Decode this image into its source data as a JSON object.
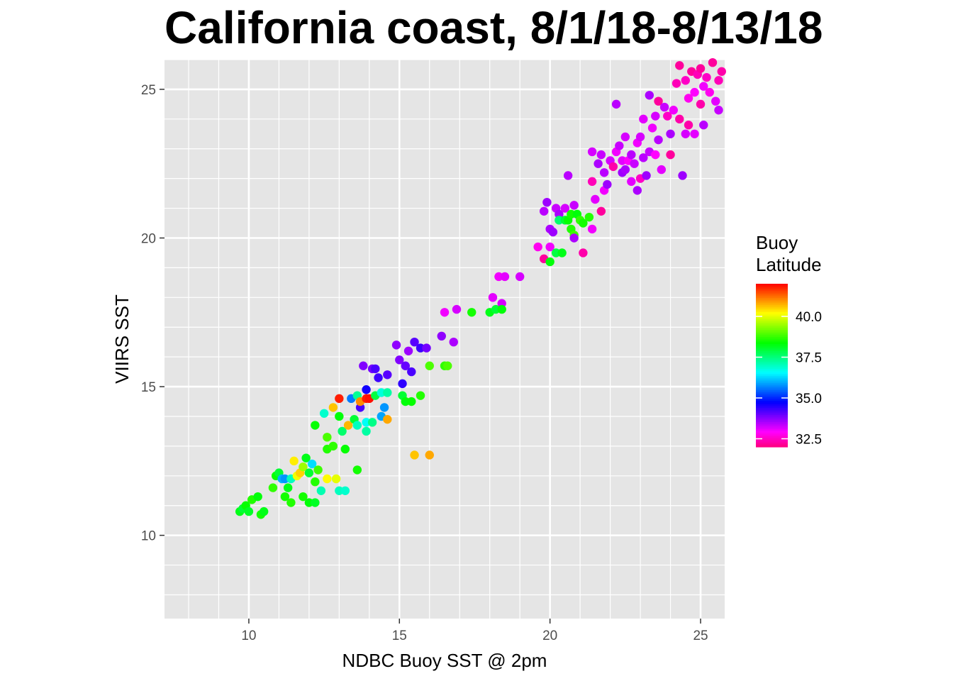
{
  "chart_data": {
    "type": "scatter",
    "title": "California coast, 8/1/18-8/13/18",
    "xlabel": "NDBC Buoy SST @ 2pm",
    "ylabel": "VIIRS SST",
    "xlim": [
      7.2,
      25.8
    ],
    "ylim": [
      7.2,
      26.0
    ],
    "x_ticks": [
      10,
      15,
      20,
      25
    ],
    "y_ticks": [
      10,
      15,
      20,
      25
    ],
    "grid": true,
    "panel_background": "#e5e5e5",
    "legend": {
      "title_lines": [
        "Buoy",
        "Latitude"
      ],
      "placement": "right",
      "range": [
        32.0,
        42.0
      ],
      "ticks": [
        32.5,
        35.0,
        37.5,
        40.0
      ],
      "tick_labels": [
        "32.5",
        "35.0",
        "37.5",
        "40.0"
      ],
      "colorscale": "rainbow: magenta (low) to red (high)"
    },
    "points": [
      {
        "x": 9.7,
        "y": 10.8,
        "lat": 38.2
      },
      {
        "x": 9.8,
        "y": 10.9,
        "lat": 38.0
      },
      {
        "x": 9.9,
        "y": 11.0,
        "lat": 38.4
      },
      {
        "x": 10.0,
        "y": 10.8,
        "lat": 38.1
      },
      {
        "x": 10.1,
        "y": 11.2,
        "lat": 38.6
      },
      {
        "x": 10.3,
        "y": 11.3,
        "lat": 38.3
      },
      {
        "x": 10.4,
        "y": 10.7,
        "lat": 38.5
      },
      {
        "x": 10.5,
        "y": 10.8,
        "lat": 38.2
      },
      {
        "x": 10.8,
        "y": 11.6,
        "lat": 38.7
      },
      {
        "x": 10.9,
        "y": 12.0,
        "lat": 38.4
      },
      {
        "x": 11.0,
        "y": 12.1,
        "lat": 38.0
      },
      {
        "x": 11.1,
        "y": 11.9,
        "lat": 36.0
      },
      {
        "x": 11.2,
        "y": 11.9,
        "lat": 35.8
      },
      {
        "x": 11.2,
        "y": 11.3,
        "lat": 38.5
      },
      {
        "x": 11.3,
        "y": 11.6,
        "lat": 38.2
      },
      {
        "x": 11.4,
        "y": 11.9,
        "lat": 37.0
      },
      {
        "x": 11.4,
        "y": 11.1,
        "lat": 38.6
      },
      {
        "x": 11.5,
        "y": 12.5,
        "lat": 40.3
      },
      {
        "x": 11.6,
        "y": 12.0,
        "lat": 40.1
      },
      {
        "x": 11.7,
        "y": 12.1,
        "lat": 40.5
      },
      {
        "x": 11.8,
        "y": 12.3,
        "lat": 39.5
      },
      {
        "x": 11.8,
        "y": 11.3,
        "lat": 38.5
      },
      {
        "x": 11.9,
        "y": 12.6,
        "lat": 38.2
      },
      {
        "x": 12.0,
        "y": 12.1,
        "lat": 38.0
      },
      {
        "x": 12.1,
        "y": 12.4,
        "lat": 36.3
      },
      {
        "x": 12.2,
        "y": 11.8,
        "lat": 38.6
      },
      {
        "x": 12.0,
        "y": 11.1,
        "lat": 38.3
      },
      {
        "x": 12.2,
        "y": 11.1,
        "lat": 38.1
      },
      {
        "x": 12.3,
        "y": 12.2,
        "lat": 38.8
      },
      {
        "x": 12.2,
        "y": 13.7,
        "lat": 38.4
      },
      {
        "x": 12.4,
        "y": 11.5,
        "lat": 37.1
      },
      {
        "x": 12.5,
        "y": 14.1,
        "lat": 36.9
      },
      {
        "x": 12.6,
        "y": 13.3,
        "lat": 38.9
      },
      {
        "x": 12.6,
        "y": 12.9,
        "lat": 38.6
      },
      {
        "x": 12.6,
        "y": 11.9,
        "lat": 40.2
      },
      {
        "x": 12.8,
        "y": 14.3,
        "lat": 40.6
      },
      {
        "x": 12.8,
        "y": 13.0,
        "lat": 38.7
      },
      {
        "x": 12.9,
        "y": 11.9,
        "lat": 40.0
      },
      {
        "x": 13.0,
        "y": 14.6,
        "lat": 41.8
      },
      {
        "x": 13.0,
        "y": 14.0,
        "lat": 38.3
      },
      {
        "x": 13.0,
        "y": 11.5,
        "lat": 37.0
      },
      {
        "x": 13.1,
        "y": 13.5,
        "lat": 37.6
      },
      {
        "x": 13.2,
        "y": 12.9,
        "lat": 38.4
      },
      {
        "x": 13.2,
        "y": 11.5,
        "lat": 36.9
      },
      {
        "x": 13.3,
        "y": 13.7,
        "lat": 40.7
      },
      {
        "x": 13.4,
        "y": 14.6,
        "lat": 35.6
      },
      {
        "x": 13.5,
        "y": 13.9,
        "lat": 38.0
      },
      {
        "x": 13.6,
        "y": 14.7,
        "lat": 37.3
      },
      {
        "x": 13.6,
        "y": 13.7,
        "lat": 37.0
      },
      {
        "x": 13.6,
        "y": 12.2,
        "lat": 38.5
      },
      {
        "x": 13.7,
        "y": 14.3,
        "lat": 34.2
      },
      {
        "x": 13.7,
        "y": 14.5,
        "lat": 41.0
      },
      {
        "x": 13.8,
        "y": 15.7,
        "lat": 33.8
      },
      {
        "x": 13.9,
        "y": 14.9,
        "lat": 34.6
      },
      {
        "x": 13.9,
        "y": 14.6,
        "lat": 41.8
      },
      {
        "x": 13.9,
        "y": 13.5,
        "lat": 37.2
      },
      {
        "x": 13.9,
        "y": 13.8,
        "lat": 36.6
      },
      {
        "x": 14.0,
        "y": 14.6,
        "lat": 41.9
      },
      {
        "x": 14.1,
        "y": 15.6,
        "lat": 33.9
      },
      {
        "x": 14.1,
        "y": 13.8,
        "lat": 37.4
      },
      {
        "x": 14.2,
        "y": 14.7,
        "lat": 37.9
      },
      {
        "x": 14.2,
        "y": 15.6,
        "lat": 34.2
      },
      {
        "x": 14.3,
        "y": 15.3,
        "lat": 34.3
      },
      {
        "x": 14.4,
        "y": 14.0,
        "lat": 35.9
      },
      {
        "x": 14.4,
        "y": 14.8,
        "lat": 36.8
      },
      {
        "x": 14.5,
        "y": 14.3,
        "lat": 35.8
      },
      {
        "x": 14.6,
        "y": 13.9,
        "lat": 40.8
      },
      {
        "x": 14.6,
        "y": 14.8,
        "lat": 37.2
      },
      {
        "x": 14.6,
        "y": 15.4,
        "lat": 34.1
      },
      {
        "x": 14.9,
        "y": 16.4,
        "lat": 33.7
      },
      {
        "x": 15.0,
        "y": 15.9,
        "lat": 33.8
      },
      {
        "x": 15.1,
        "y": 14.7,
        "lat": 38.0
      },
      {
        "x": 15.1,
        "y": 15.1,
        "lat": 34.4
      },
      {
        "x": 15.2,
        "y": 14.5,
        "lat": 38.3
      },
      {
        "x": 15.2,
        "y": 15.7,
        "lat": 34.0
      },
      {
        "x": 15.3,
        "y": 16.2,
        "lat": 33.6
      },
      {
        "x": 15.4,
        "y": 14.5,
        "lat": 38.4
      },
      {
        "x": 15.4,
        "y": 15.5,
        "lat": 34.2
      },
      {
        "x": 15.5,
        "y": 16.5,
        "lat": 34.1
      },
      {
        "x": 15.5,
        "y": 12.7,
        "lat": 40.6
      },
      {
        "x": 15.7,
        "y": 14.7,
        "lat": 38.6
      },
      {
        "x": 15.7,
        "y": 16.3,
        "lat": 34.3
      },
      {
        "x": 15.9,
        "y": 16.3,
        "lat": 33.9
      },
      {
        "x": 16.0,
        "y": 15.7,
        "lat": 38.9
      },
      {
        "x": 16.0,
        "y": 12.7,
        "lat": 40.8
      },
      {
        "x": 16.4,
        "y": 16.7,
        "lat": 33.7
      },
      {
        "x": 16.5,
        "y": 15.7,
        "lat": 38.7
      },
      {
        "x": 16.6,
        "y": 15.7,
        "lat": 38.9
      },
      {
        "x": 16.5,
        "y": 17.5,
        "lat": 33.0
      },
      {
        "x": 16.8,
        "y": 16.5,
        "lat": 33.5
      },
      {
        "x": 16.9,
        "y": 17.6,
        "lat": 33.2
      },
      {
        "x": 17.4,
        "y": 17.5,
        "lat": 38.5
      },
      {
        "x": 18.0,
        "y": 17.5,
        "lat": 38.2
      },
      {
        "x": 18.1,
        "y": 18.0,
        "lat": 33.1
      },
      {
        "x": 18.2,
        "y": 17.6,
        "lat": 38.0
      },
      {
        "x": 18.3,
        "y": 18.7,
        "lat": 33.0
      },
      {
        "x": 18.4,
        "y": 17.8,
        "lat": 33.2
      },
      {
        "x": 18.4,
        "y": 17.6,
        "lat": 38.3
      },
      {
        "x": 18.5,
        "y": 18.7,
        "lat": 33.1
      },
      {
        "x": 19.0,
        "y": 18.7,
        "lat": 33.2
      },
      {
        "x": 19.6,
        "y": 19.7,
        "lat": 32.8
      },
      {
        "x": 19.8,
        "y": 19.3,
        "lat": 32.2
      },
      {
        "x": 19.8,
        "y": 20.9,
        "lat": 33.4
      },
      {
        "x": 19.9,
        "y": 21.2,
        "lat": 33.6
      },
      {
        "x": 20.0,
        "y": 19.2,
        "lat": 38.3
      },
      {
        "x": 20.0,
        "y": 20.3,
        "lat": 33.5
      },
      {
        "x": 20.0,
        "y": 19.7,
        "lat": 33.0
      },
      {
        "x": 20.1,
        "y": 20.2,
        "lat": 33.6
      },
      {
        "x": 20.2,
        "y": 21.0,
        "lat": 33.3
      },
      {
        "x": 20.2,
        "y": 19.5,
        "lat": 37.9
      },
      {
        "x": 20.3,
        "y": 20.8,
        "lat": 33.5
      },
      {
        "x": 20.3,
        "y": 20.6,
        "lat": 37.6
      },
      {
        "x": 20.4,
        "y": 19.5,
        "lat": 38.2
      },
      {
        "x": 20.5,
        "y": 21.0,
        "lat": 33.2
      },
      {
        "x": 20.5,
        "y": 20.6,
        "lat": 38.0
      },
      {
        "x": 20.6,
        "y": 22.1,
        "lat": 33.4
      },
      {
        "x": 20.6,
        "y": 20.6,
        "lat": 38.4
      },
      {
        "x": 20.7,
        "y": 20.3,
        "lat": 38.6
      },
      {
        "x": 20.7,
        "y": 20.8,
        "lat": 38.5
      },
      {
        "x": 20.8,
        "y": 21.1,
        "lat": 33.3
      },
      {
        "x": 20.8,
        "y": 20.1,
        "lat": 38.8
      },
      {
        "x": 20.8,
        "y": 20.0,
        "lat": 33.5
      },
      {
        "x": 20.9,
        "y": 20.8,
        "lat": 38.3
      },
      {
        "x": 21.0,
        "y": 20.6,
        "lat": 38.7
      },
      {
        "x": 21.1,
        "y": 19.5,
        "lat": 32.3
      },
      {
        "x": 21.1,
        "y": 20.5,
        "lat": 38.5
      },
      {
        "x": 21.3,
        "y": 20.7,
        "lat": 38.6
      },
      {
        "x": 21.4,
        "y": 20.3,
        "lat": 33.0
      },
      {
        "x": 21.4,
        "y": 21.9,
        "lat": 32.4
      },
      {
        "x": 21.4,
        "y": 22.9,
        "lat": 33.2
      },
      {
        "x": 21.5,
        "y": 21.3,
        "lat": 33.1
      },
      {
        "x": 21.6,
        "y": 22.5,
        "lat": 33.5
      },
      {
        "x": 21.7,
        "y": 20.9,
        "lat": 32.2
      },
      {
        "x": 21.7,
        "y": 22.8,
        "lat": 33.3
      },
      {
        "x": 21.8,
        "y": 21.6,
        "lat": 33.0
      },
      {
        "x": 21.8,
        "y": 22.2,
        "lat": 33.4
      },
      {
        "x": 21.9,
        "y": 21.8,
        "lat": 33.6
      },
      {
        "x": 22.0,
        "y": 22.6,
        "lat": 33.2
      },
      {
        "x": 22.1,
        "y": 22.4,
        "lat": 32.3
      },
      {
        "x": 22.2,
        "y": 24.5,
        "lat": 33.4
      },
      {
        "x": 22.2,
        "y": 22.9,
        "lat": 33.0
      },
      {
        "x": 22.3,
        "y": 23.1,
        "lat": 33.3
      },
      {
        "x": 22.4,
        "y": 22.2,
        "lat": 33.6
      },
      {
        "x": 22.4,
        "y": 22.6,
        "lat": 33.1
      },
      {
        "x": 22.5,
        "y": 22.3,
        "lat": 33.5
      },
      {
        "x": 22.5,
        "y": 23.4,
        "lat": 33.2
      },
      {
        "x": 22.6,
        "y": 22.6,
        "lat": 32.9
      },
      {
        "x": 22.7,
        "y": 22.8,
        "lat": 33.4
      },
      {
        "x": 22.7,
        "y": 21.9,
        "lat": 33.1
      },
      {
        "x": 22.8,
        "y": 22.5,
        "lat": 33.3
      },
      {
        "x": 22.9,
        "y": 23.2,
        "lat": 33.0
      },
      {
        "x": 22.9,
        "y": 21.6,
        "lat": 33.5
      },
      {
        "x": 23.0,
        "y": 22.0,
        "lat": 32.5
      },
      {
        "x": 23.0,
        "y": 23.4,
        "lat": 33.2
      },
      {
        "x": 23.1,
        "y": 22.7,
        "lat": 33.4
      },
      {
        "x": 23.1,
        "y": 24.0,
        "lat": 33.1
      },
      {
        "x": 23.2,
        "y": 22.1,
        "lat": 33.6
      },
      {
        "x": 23.3,
        "y": 22.9,
        "lat": 33.3
      },
      {
        "x": 23.3,
        "y": 24.8,
        "lat": 33.5
      },
      {
        "x": 23.4,
        "y": 23.7,
        "lat": 33.0
      },
      {
        "x": 23.5,
        "y": 24.1,
        "lat": 33.2
      },
      {
        "x": 23.5,
        "y": 22.8,
        "lat": 32.9
      },
      {
        "x": 23.6,
        "y": 24.6,
        "lat": 32.2
      },
      {
        "x": 23.6,
        "y": 23.3,
        "lat": 33.4
      },
      {
        "x": 23.7,
        "y": 22.3,
        "lat": 33.1
      },
      {
        "x": 23.8,
        "y": 24.4,
        "lat": 33.3
      },
      {
        "x": 23.9,
        "y": 24.1,
        "lat": 32.5
      },
      {
        "x": 24.0,
        "y": 22.8,
        "lat": 32.2
      },
      {
        "x": 24.0,
        "y": 23.5,
        "lat": 33.5
      },
      {
        "x": 24.1,
        "y": 24.3,
        "lat": 33.0
      },
      {
        "x": 24.2,
        "y": 25.2,
        "lat": 32.4
      },
      {
        "x": 24.3,
        "y": 24.0,
        "lat": 32.3
      },
      {
        "x": 24.3,
        "y": 25.8,
        "lat": 32.2
      },
      {
        "x": 24.4,
        "y": 22.1,
        "lat": 33.6
      },
      {
        "x": 24.5,
        "y": 23.5,
        "lat": 33.2
      },
      {
        "x": 24.5,
        "y": 25.3,
        "lat": 32.5
      },
      {
        "x": 24.6,
        "y": 24.7,
        "lat": 32.8
      },
      {
        "x": 24.6,
        "y": 23.8,
        "lat": 32.3
      },
      {
        "x": 24.7,
        "y": 25.6,
        "lat": 32.2
      },
      {
        "x": 24.8,
        "y": 24.9,
        "lat": 32.9
      },
      {
        "x": 24.8,
        "y": 23.5,
        "lat": 33.1
      },
      {
        "x": 24.9,
        "y": 25.5,
        "lat": 32.4
      },
      {
        "x": 25.0,
        "y": 25.7,
        "lat": 32.2
      },
      {
        "x": 25.0,
        "y": 24.5,
        "lat": 32.3
      },
      {
        "x": 25.1,
        "y": 25.1,
        "lat": 33.0
      },
      {
        "x": 25.1,
        "y": 23.8,
        "lat": 33.4
      },
      {
        "x": 25.2,
        "y": 25.4,
        "lat": 32.5
      },
      {
        "x": 25.3,
        "y": 24.9,
        "lat": 32.8
      },
      {
        "x": 25.4,
        "y": 25.9,
        "lat": 32.2
      },
      {
        "x": 25.5,
        "y": 24.6,
        "lat": 33.1
      },
      {
        "x": 25.6,
        "y": 25.3,
        "lat": 32.4
      },
      {
        "x": 25.6,
        "y": 24.3,
        "lat": 33.3
      },
      {
        "x": 25.7,
        "y": 25.6,
        "lat": 32.3
      }
    ]
  }
}
